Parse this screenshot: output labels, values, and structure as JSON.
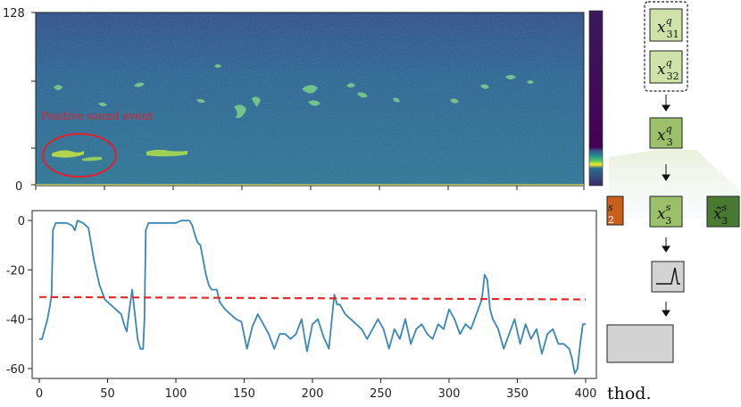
{
  "spectrogram": {
    "y_ticks": [
      "128",
      "0"
    ],
    "annotation": "Positive sound event"
  },
  "diagram": {
    "nodes": {
      "q31": {
        "base": "x",
        "sup": "q",
        "sub": "31"
      },
      "q32": {
        "base": "x",
        "sup": "q",
        "sub": "32"
      },
      "q3": {
        "base": "x",
        "sup": "q",
        "sub": "3"
      },
      "s3": {
        "base": "x",
        "sup": "s",
        "sub": "3"
      },
      "s3_tilde": {
        "base": "x̃",
        "sup": "s",
        "sub": "3"
      },
      "s2_partial": {
        "sup": "s",
        "sub": "2"
      }
    },
    "colors": {
      "light_green": "#cfe3a8",
      "dark_green": "#4a7a32",
      "orange": "#c8601a",
      "grey": "#d3d3d3"
    },
    "caption_fragment": "thod."
  },
  "chart_data": {
    "type": "line",
    "xlim": [
      0,
      400
    ],
    "ylim": [
      -64,
      4
    ],
    "x_ticks": [
      0,
      50,
      100,
      150,
      200,
      250,
      300,
      350,
      400
    ],
    "y_ticks": [
      0,
      -20,
      -40,
      -60
    ],
    "series": [
      {
        "color": "#3a86b5",
        "x": [
          0,
          2,
          4,
          6,
          8,
          9,
          10,
          12,
          16,
          20,
          24,
          26,
          28,
          32,
          36,
          40,
          44,
          48,
          52,
          56,
          60,
          62,
          64,
          66,
          68,
          70,
          72,
          74,
          76,
          77,
          78,
          80,
          84,
          90,
          96,
          100,
          104,
          108,
          110,
          112,
          114,
          116,
          118,
          120,
          122,
          124,
          126,
          128,
          130,
          132,
          136,
          140,
          144,
          148,
          152,
          156,
          160,
          164,
          168,
          172,
          176,
          180,
          184,
          188,
          192,
          196,
          200,
          204,
          208,
          212,
          216,
          218,
          220,
          224,
          228,
          232,
          236,
          240,
          244,
          248,
          252,
          256,
          260,
          264,
          268,
          272,
          276,
          280,
          284,
          288,
          292,
          296,
          300,
          304,
          308,
          312,
          316,
          320,
          324,
          326,
          328,
          330,
          332,
          336,
          340,
          344,
          348,
          352,
          356,
          360,
          364,
          368,
          372,
          376,
          380,
          384,
          388,
          390,
          392,
          394,
          396,
          398,
          400
        ],
        "y": [
          -48,
          -48,
          -44,
          -40,
          -34,
          -30,
          -4,
          -1,
          -1,
          -1,
          -2,
          -4,
          0,
          -1,
          -3,
          -16,
          -26,
          -32,
          -34,
          -36,
          -38,
          -42,
          -45,
          -36,
          -28,
          -38,
          -48,
          -52,
          -52,
          -40,
          -4,
          -1,
          -1,
          -1,
          -1,
          -1,
          0,
          0,
          0,
          -2,
          -6,
          -9,
          -10,
          -16,
          -22,
          -26,
          -28,
          -28,
          -28,
          -33,
          -36,
          -38,
          -40,
          -41,
          -52,
          -43,
          -38,
          -42,
          -46,
          -52,
          -46,
          -46,
          -48,
          -46,
          -40,
          -53,
          -42,
          -40,
          -47,
          -52,
          -30,
          -34,
          -34,
          -38,
          -40,
          -42,
          -44,
          -48,
          -44,
          -40,
          -44,
          -52,
          -44,
          -48,
          -40,
          -50,
          -44,
          -42,
          -46,
          -48,
          -42,
          -44,
          -36,
          -40,
          -46,
          -42,
          -44,
          -38,
          -32,
          -22,
          -24,
          -36,
          -40,
          -44,
          -52,
          -46,
          -40,
          -50,
          -42,
          -48,
          -44,
          -54,
          -46,
          -44,
          -50,
          -50,
          -52,
          -56,
          -62,
          -60,
          -50,
          -42,
          -42
        ]
      },
      {
        "style": "dashed",
        "color": "#e8282b",
        "x": [
          0,
          400
        ],
        "y": [
          -31,
          -32
        ]
      }
    ]
  }
}
